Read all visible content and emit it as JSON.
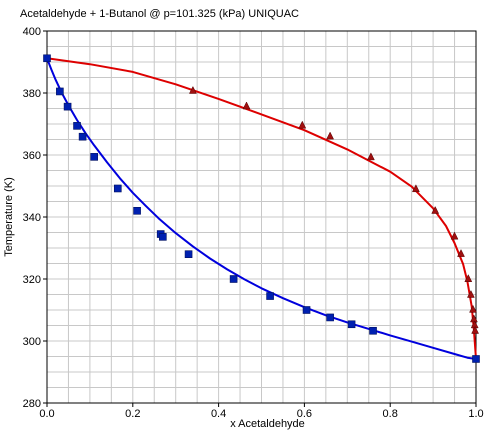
{
  "chart_data": {
    "type": "line",
    "title": "Acetaldehyde + 1-Butanol @ p=101.325 (kPa) UNIQUAC",
    "xlabel": "x Acetaldehyde",
    "ylabel": "Temperature (K)",
    "xlim": [
      0,
      1
    ],
    "ylim": [
      280,
      400
    ],
    "x_ticks": [
      "0.0",
      "0.2",
      "0.4",
      "0.6",
      "0.8",
      "1.0"
    ],
    "y_ticks": [
      "280",
      "300",
      "320",
      "340",
      "360",
      "380",
      "400"
    ],
    "grid": true,
    "colors": {
      "bubble_line": "#0000dd",
      "bubble_marker": "#0020b0",
      "dew_line": "#dd0000",
      "dew_marker": "#a01010",
      "grid": "#c8c8c8",
      "axis": "#000000"
    },
    "series": [
      {
        "key": "bubble_curve",
        "marker": "none",
        "points": [
          [
            0,
            391.2
          ],
          [
            0.01,
            387.6
          ],
          [
            0.02,
            384.3
          ],
          [
            0.035,
            379.9
          ],
          [
            0.05,
            376.0
          ],
          [
            0.07,
            371.3
          ],
          [
            0.09,
            367.0
          ],
          [
            0.11,
            363.1
          ],
          [
            0.14,
            357.6
          ],
          [
            0.17,
            352.5
          ],
          [
            0.2,
            347.8
          ],
          [
            0.23,
            343.6
          ],
          [
            0.26,
            339.6
          ],
          [
            0.3,
            334.8
          ],
          [
            0.34,
            330.5
          ],
          [
            0.38,
            326.6
          ],
          [
            0.42,
            323.1
          ],
          [
            0.46,
            319.9
          ],
          [
            0.5,
            317.0
          ],
          [
            0.55,
            313.8
          ],
          [
            0.6,
            310.9
          ],
          [
            0.65,
            308.3
          ],
          [
            0.7,
            306.0
          ],
          [
            0.75,
            303.9
          ],
          [
            0.8,
            301.8
          ],
          [
            0.85,
            299.8
          ],
          [
            0.9,
            297.8
          ],
          [
            0.95,
            295.8
          ],
          [
            0.98,
            294.6
          ],
          [
            1.0,
            294.2
          ]
        ]
      },
      {
        "key": "dew_curve",
        "marker": "none",
        "points": [
          [
            0,
            391.2
          ],
          [
            0.1,
            389.3
          ],
          [
            0.2,
            386.8
          ],
          [
            0.3,
            382.8
          ],
          [
            0.4,
            378.1
          ],
          [
            0.5,
            373.1
          ],
          [
            0.6,
            368.0
          ],
          [
            0.7,
            361.8
          ],
          [
            0.75,
            358.2
          ],
          [
            0.8,
            354.6
          ],
          [
            0.85,
            349.8
          ],
          [
            0.9,
            342.8
          ],
          [
            0.93,
            337.1
          ],
          [
            0.95,
            331.6
          ],
          [
            0.97,
            324.8
          ],
          [
            0.98,
            319.2
          ],
          [
            0.99,
            311.2
          ],
          [
            0.995,
            303.6
          ],
          [
            1.0,
            294.2
          ]
        ]
      },
      {
        "key": "bubble_points",
        "marker": "square",
        "points": [
          [
            0.0,
            391.2
          ],
          [
            0.03,
            380.5
          ],
          [
            0.048,
            375.6
          ],
          [
            0.07,
            369.4
          ],
          [
            0.083,
            365.9
          ],
          [
            0.11,
            359.4
          ],
          [
            0.165,
            349.2
          ],
          [
            0.21,
            342.0
          ],
          [
            0.265,
            334.5
          ],
          [
            0.27,
            333.6
          ],
          [
            0.33,
            328.0
          ],
          [
            0.435,
            320.0
          ],
          [
            0.52,
            314.5
          ],
          [
            0.605,
            310.0
          ],
          [
            0.66,
            307.6
          ],
          [
            0.71,
            305.4
          ],
          [
            0.76,
            303.3
          ],
          [
            1.0,
            294.2
          ]
        ]
      },
      {
        "key": "dew_points",
        "marker": "triangle",
        "points": [
          [
            0.34,
            380.8
          ],
          [
            0.465,
            375.8
          ],
          [
            0.595,
            369.6
          ],
          [
            0.66,
            366.1
          ],
          [
            0.755,
            359.4
          ],
          [
            0.86,
            349.1
          ],
          [
            0.905,
            342.1
          ],
          [
            0.95,
            333.8
          ],
          [
            0.965,
            328.2
          ],
          [
            0.982,
            320.1
          ],
          [
            0.988,
            315.0
          ],
          [
            0.993,
            310.2
          ],
          [
            0.995,
            307.1
          ],
          [
            0.997,
            305.2
          ],
          [
            0.998,
            303.4
          ]
        ]
      }
    ]
  }
}
